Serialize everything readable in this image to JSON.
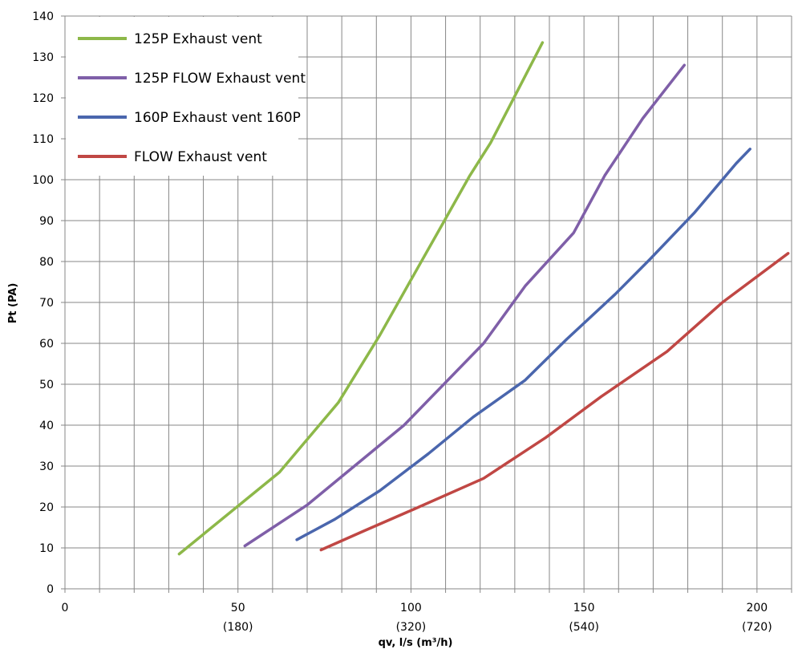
{
  "chart_data": {
    "type": "line",
    "xlabel": "qv, l/s (m³/h)",
    "ylabel": "Pt (PA)",
    "xlim": [
      0,
      210
    ],
    "ylim": [
      0,
      140
    ],
    "grid": true,
    "legend_position": "top-left",
    "x_ticks": [
      {
        "value": 0,
        "label": "0",
        "sub": ""
      },
      {
        "value": 50,
        "label": "50",
        "sub": "(180)"
      },
      {
        "value": 100,
        "label": "100",
        "sub": "(320)"
      },
      {
        "value": 150,
        "label": "150",
        "sub": "(540)"
      },
      {
        "value": 200,
        "label": "200",
        "sub": "(720)"
      }
    ],
    "y_ticks": [
      {
        "value": 0,
        "label": "0"
      },
      {
        "value": 10,
        "label": "10"
      },
      {
        "value": 20,
        "label": "20"
      },
      {
        "value": 30,
        "label": "30"
      },
      {
        "value": 40,
        "label": "40"
      },
      {
        "value": 50,
        "label": "50"
      },
      {
        "value": 60,
        "label": "60"
      },
      {
        "value": 70,
        "label": "70"
      },
      {
        "value": 80,
        "label": "80"
      },
      {
        "value": 90,
        "label": "90"
      },
      {
        "value": 100,
        "label": "100"
      },
      {
        "value": 110,
        "label": "110"
      },
      {
        "value": 120,
        "label": "120"
      },
      {
        "value": 130,
        "label": "130"
      },
      {
        "value": 140,
        "label": "140"
      }
    ],
    "series": [
      {
        "name": "125P Exhaust vent",
        "color": "#8db849",
        "points": [
          [
            33,
            8.5
          ],
          [
            62,
            28.5
          ],
          [
            79,
            45.5
          ],
          [
            91,
            62
          ],
          [
            101,
            77
          ],
          [
            109,
            89
          ],
          [
            117,
            101
          ],
          [
            123,
            109
          ],
          [
            138,
            133.5
          ]
        ]
      },
      {
        "name": "125P FLOW Exhaust vent",
        "color": "#7f5fa8",
        "points": [
          [
            52,
            10.5
          ],
          [
            70,
            20.5
          ],
          [
            98,
            40
          ],
          [
            121,
            60
          ],
          [
            133,
            74
          ],
          [
            147,
            87
          ],
          [
            156,
            101
          ],
          [
            167,
            115
          ],
          [
            179,
            128
          ]
        ]
      },
      {
        "name": "160P Exhaust vent 160P",
        "color": "#4a66ad",
        "points": [
          [
            67,
            12
          ],
          [
            78,
            17
          ],
          [
            91,
            24
          ],
          [
            105,
            33
          ],
          [
            118,
            42
          ],
          [
            133,
            51
          ],
          [
            145,
            61
          ],
          [
            159,
            72
          ],
          [
            169,
            80.5
          ],
          [
            182,
            92
          ],
          [
            194,
            104
          ],
          [
            198,
            107.5
          ]
        ]
      },
      {
        "name": "FLOW Exhaust vent",
        "color": "#c04744",
        "points": [
          [
            74,
            9.5
          ],
          [
            86,
            14
          ],
          [
            101,
            19.5
          ],
          [
            121,
            27
          ],
          [
            139,
            37
          ],
          [
            155,
            47
          ],
          [
            174,
            58
          ],
          [
            190,
            70
          ],
          [
            209,
            82
          ]
        ]
      }
    ]
  }
}
